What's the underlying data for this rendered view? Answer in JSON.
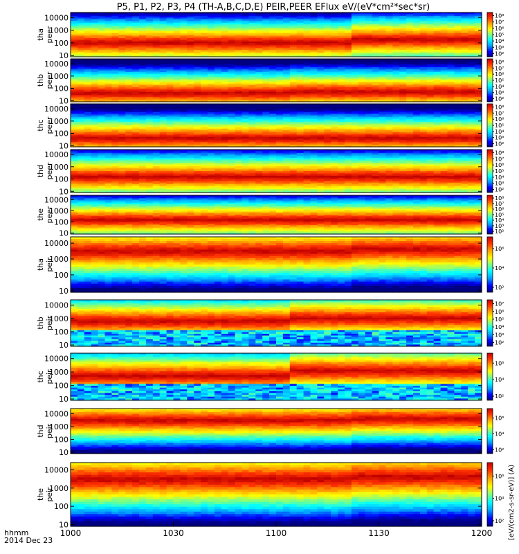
{
  "title": "P5, P1, P2, P3, P4 (TH-A,B,C,D,E) PEIR,PEER EFlux eV/(eV*cm²*sec*sr)",
  "colorbar_unit_label": "[eV/(cm2-s-sr-eV)] (A)",
  "footer": {
    "x_label_top": "hhmm",
    "x_label_bottom": "2014 Dec 23"
  },
  "chart_data": {
    "type": "heatmap",
    "x_axis": {
      "range": [
        "1000",
        "1200"
      ],
      "tick_labels": [
        "1000",
        "1030",
        "1100",
        "1130",
        "1200"
      ],
      "tick_minutes": [
        0,
        30,
        60,
        90,
        120
      ]
    },
    "y_axis": {
      "scale": "log",
      "range": [
        8,
        25000
      ],
      "tick_labels": [
        "10",
        "100",
        "1000",
        "10000"
      ],
      "tick_values": [
        10,
        100,
        1000,
        10000
      ]
    },
    "colorscale": [
      "#000080",
      "#0000ff",
      "#00a0ff",
      "#00ffff",
      "#80ff80",
      "#ffff00",
      "#ffa000",
      "#ff3000",
      "#c00000"
    ],
    "panels": [
      {
        "name": "tha peer",
        "label_line1": "tha",
        "label_line2": "peer",
        "cbar_ticks": [
          "10²",
          "10³",
          "10⁴",
          "10⁵",
          "10⁶",
          "10⁷",
          "10⁸"
        ],
        "cbar_exps": [
          2,
          3,
          4,
          5,
          6,
          7,
          8
        ],
        "cbar_range": [
          1.5,
          8.5
        ],
        "change_minute": 82,
        "peak_before": 100,
        "peak_after": 180,
        "noise": false
      },
      {
        "name": "thb peer",
        "label_line1": "thb",
        "label_line2": "peer",
        "cbar_ticks": [
          "10²",
          "10³",
          "10⁴",
          "10⁵",
          "10⁶",
          "10⁷",
          "10⁸"
        ],
        "cbar_exps": [
          2,
          3,
          4,
          5,
          6,
          7,
          8
        ],
        "cbar_range": [
          1.5,
          8.5
        ],
        "change_minute": 65,
        "peak_before": 40,
        "peak_after": 50,
        "noise": false
      },
      {
        "name": "thc peer",
        "label_line1": "thc",
        "label_line2": "peer",
        "cbar_ticks": [
          "10²",
          "10³",
          "10⁴",
          "10⁵",
          "10⁶",
          "10⁷",
          "10⁸"
        ],
        "cbar_exps": [
          2,
          3,
          4,
          5,
          6,
          7,
          8
        ],
        "cbar_range": [
          1.5,
          8.5
        ],
        "change_minute": 65,
        "peak_before": 40,
        "peak_after": 40,
        "noise": false
      },
      {
        "name": "thd peer",
        "label_line1": "thd",
        "label_line2": "peer",
        "cbar_ticks": [
          "10²",
          "10³",
          "10⁴",
          "10⁵",
          "10⁶",
          "10⁷",
          "10⁸"
        ],
        "cbar_exps": [
          2,
          3,
          4,
          5,
          6,
          7,
          8
        ],
        "cbar_range": [
          1.5,
          8.5
        ],
        "change_minute": 83,
        "peak_before": 150,
        "peak_after": 150,
        "noise": false
      },
      {
        "name": "the peer",
        "label_line1": "the",
        "label_line2": "peer",
        "cbar_ticks": [
          "10²",
          "10³",
          "10⁴",
          "10⁵",
          "10⁶",
          "10⁷",
          "10⁸"
        ],
        "cbar_exps": [
          2,
          3,
          4,
          5,
          6,
          7,
          8
        ],
        "cbar_range": [
          1.5,
          8.5
        ],
        "change_minute": 83,
        "peak_before": 150,
        "peak_after": 150,
        "noise": false
      },
      {
        "name": "tha peir",
        "label_line1": "tha",
        "label_line2": "peir",
        "cbar_ticks": [
          "10²",
          "10⁴",
          "10⁶"
        ],
        "cbar_exps": [
          2,
          4,
          6
        ],
        "cbar_range": [
          1.5,
          7.2
        ],
        "change_minute": 82,
        "peak_before": 3000,
        "peak_after": 4000,
        "noise": false
      },
      {
        "name": "thb peir",
        "label_line1": "thb",
        "label_line2": "peir",
        "cbar_ticks": [
          "10²",
          "10³",
          "10⁴",
          "10⁵",
          "10⁶",
          "10⁷"
        ],
        "cbar_exps": [
          2,
          3,
          4,
          5,
          6,
          7
        ],
        "cbar_range": [
          1.5,
          7.5
        ],
        "change_minute": 65,
        "peak_before": 600,
        "peak_after": 1000,
        "noise": true
      },
      {
        "name": "thc peir",
        "label_line1": "thc",
        "label_line2": "peir",
        "cbar_ticks": [
          "10²",
          "10⁴",
          "10⁶"
        ],
        "cbar_exps": [
          2,
          4,
          6
        ],
        "cbar_range": [
          1.5,
          7.2
        ],
        "change_minute": 65,
        "peak_before": 500,
        "peak_after": 1200,
        "noise": true
      },
      {
        "name": "thd peir",
        "label_line1": "thd",
        "label_line2": "peir",
        "cbar_ticks": [
          "10²",
          "10⁴",
          "10⁶"
        ],
        "cbar_exps": [
          2,
          4,
          6
        ],
        "cbar_range": [
          1.5,
          7.2
        ],
        "change_minute": 83,
        "peak_before": 3000,
        "peak_after": 4000,
        "noise": false
      },
      {
        "name": "the peir",
        "label_line1": "the",
        "label_line2": "peir",
        "cbar_ticks": [
          "10²",
          "10⁴",
          "10⁶"
        ],
        "cbar_exps": [
          2,
          4,
          6
        ],
        "cbar_range": [
          1.5,
          7.2
        ],
        "change_minute": 83,
        "peak_before": 3000,
        "peak_after": 4000,
        "noise": false
      }
    ]
  }
}
